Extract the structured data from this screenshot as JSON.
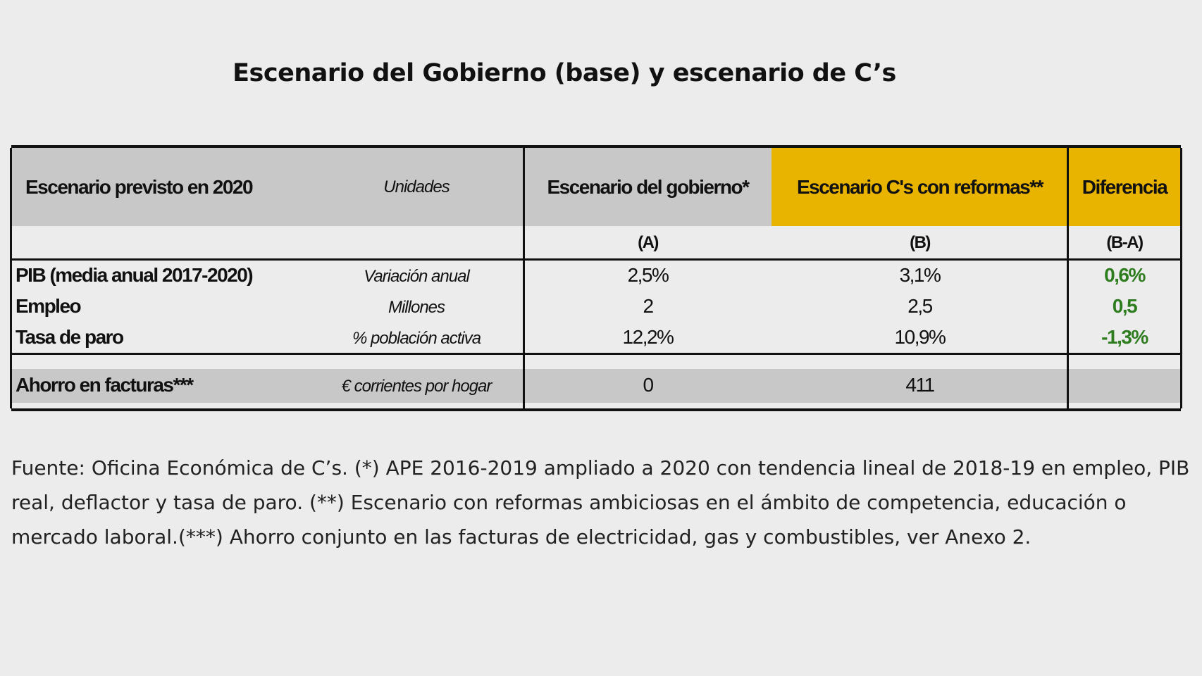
{
  "title": "Escenario del Gobierno (base) y escenario de C’s",
  "header": {
    "scenario": "Escenario previsto en 2020",
    "units": "Unidades",
    "gov": "Escenario del gobierno*",
    "cs": "Escenario C's con reformas**",
    "diff": "Diferencia",
    "a": "(A)",
    "b": "(B)",
    "ba": "(B-A)"
  },
  "rows": [
    {
      "label": "PIB (media anual 2017-2020)",
      "unit": "Variación anual",
      "a": "2,5%",
      "b": "3,1%",
      "diff": "0,6%"
    },
    {
      "label": "Empleo",
      "unit": "Millones",
      "a": "2",
      "b": "2,5",
      "diff": "0,5"
    },
    {
      "label": "Tasa de paro",
      "unit": "% población activa",
      "a": "12,2%",
      "b": "10,9%",
      "diff": "-1,3%"
    }
  ],
  "savings": {
    "label": "Ahorro en facturas***",
    "unit": "€ corrientes por hogar",
    "a": "0",
    "b": "411"
  },
  "footnote": "Fuente: Oficina Económica de C’s. (*) APE 2016-2019 ampliado a 2020 con tendencia lineal de 2018-19 en empleo, PIB real, deflactor y tasa de paro. (**) Escenario con reformas ambiciosas en el ámbito de competencia, educación o mercado laboral.(***) Ahorro conjunto en las facturas de electricidad, gas y combustibles, ver Anexo 2.",
  "colors": {
    "gray": "#c8c8c8",
    "yellow": "#e8b400",
    "green": "#2d7d1f"
  }
}
